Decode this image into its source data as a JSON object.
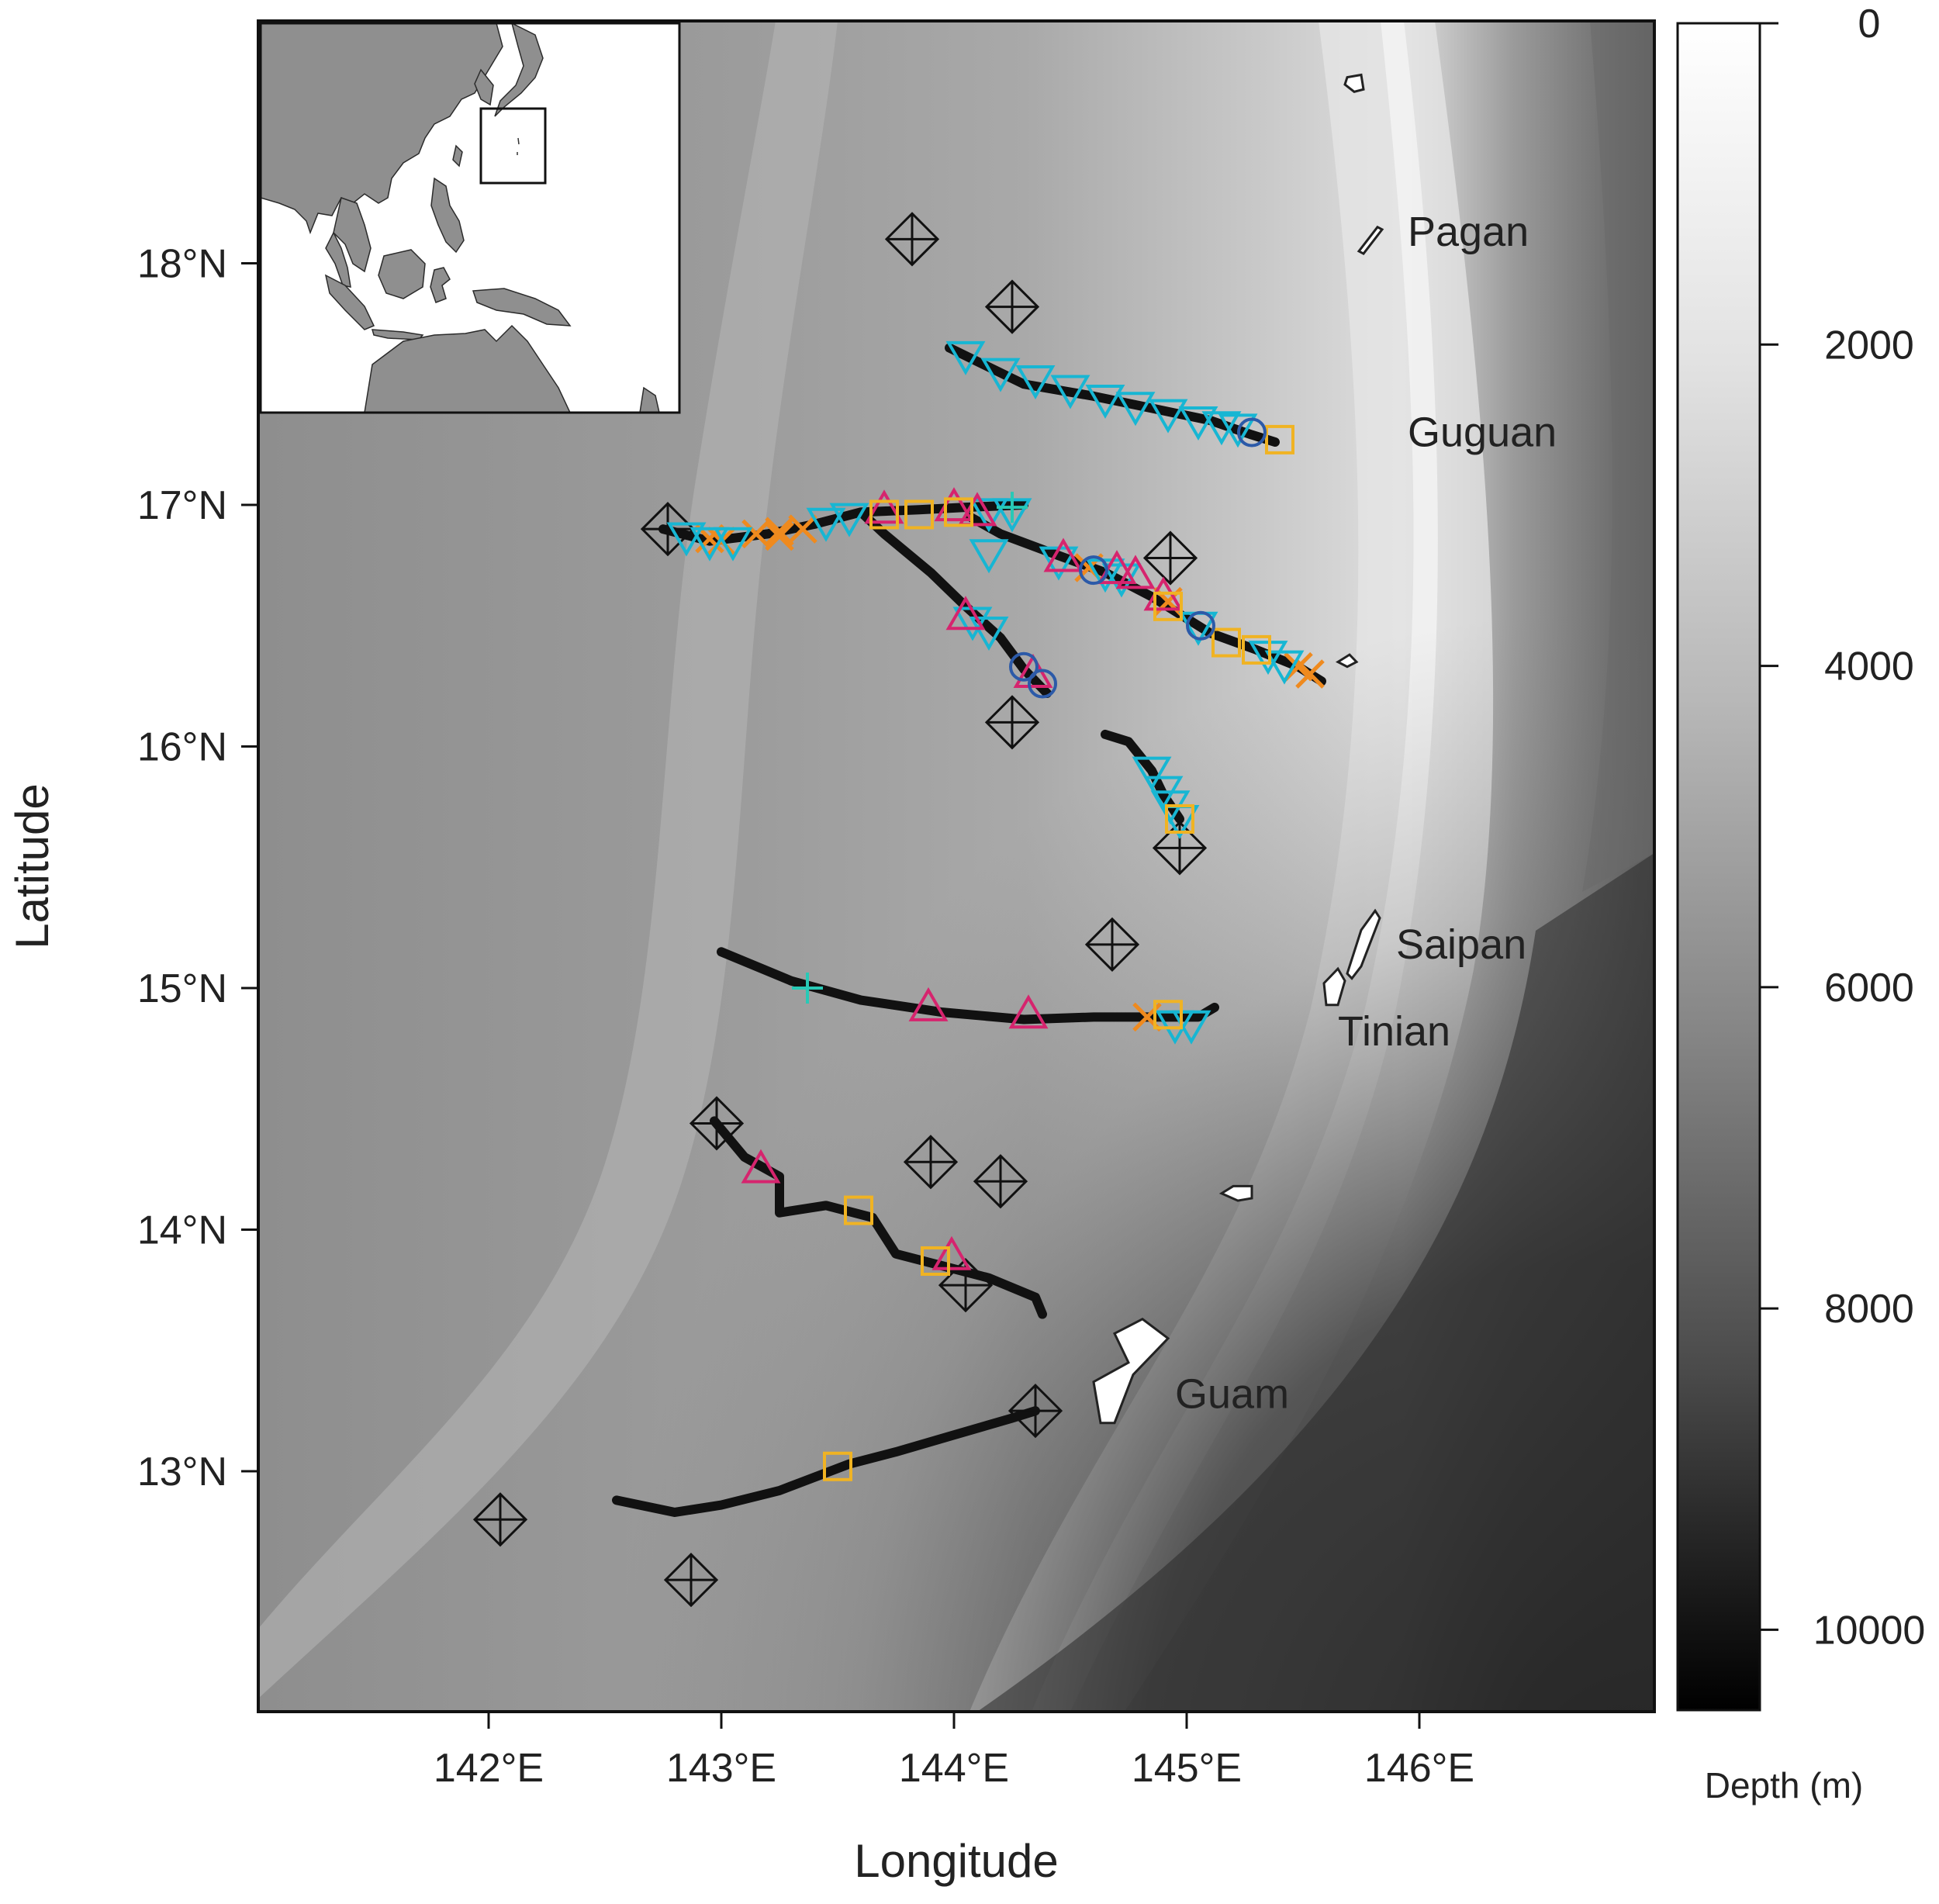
{
  "axes": {
    "x_title": "Longitude",
    "y_title": "Latitude",
    "x_range": [
      141.0,
      147.0
    ],
    "y_range": [
      12.0,
      19.0
    ],
    "x_ticks": [
      {
        "value": 142,
        "label": "142°E"
      },
      {
        "value": 143,
        "label": "143°E"
      },
      {
        "value": 144,
        "label": "144°E"
      },
      {
        "value": 145,
        "label": "145°E"
      },
      {
        "value": 146,
        "label": "146°E"
      }
    ],
    "y_ticks": [
      {
        "value": 13,
        "label": "13°N"
      },
      {
        "value": 14,
        "label": "14°N"
      },
      {
        "value": 15,
        "label": "15°N"
      },
      {
        "value": 16,
        "label": "16°N"
      },
      {
        "value": 17,
        "label": "17°N"
      },
      {
        "value": 18,
        "label": "18°N"
      }
    ]
  },
  "colorbar": {
    "title": "Depth (m)",
    "range": [
      0,
      10500
    ],
    "ticks": [
      {
        "value": 0,
        "label": "0"
      },
      {
        "value": 2000,
        "label": "2000"
      },
      {
        "value": 4000,
        "label": "4000"
      },
      {
        "value": 6000,
        "label": "6000"
      },
      {
        "value": 8000,
        "label": "8000"
      },
      {
        "value": 10000,
        "label": "10000"
      }
    ]
  },
  "places": [
    {
      "name": "Pagan",
      "lon": 145.95,
      "lat": 18.13
    },
    {
      "name": "Guguan",
      "lon": 145.95,
      "lat": 17.3
    },
    {
      "name": "Saipan",
      "lon": 145.9,
      "lat": 15.18
    },
    {
      "name": "Tinian",
      "lon": 145.65,
      "lat": 14.82
    },
    {
      "name": "Guam",
      "lon": 144.95,
      "lat": 13.32
    }
  ],
  "islands": [
    {
      "id": "north-islet",
      "lon": 145.72,
      "lat": 18.75,
      "shape": [
        [
          -0.03,
          0.02
        ],
        [
          0.03,
          0.03
        ],
        [
          0.04,
          -0.03
        ],
        [
          0.0,
          -0.04
        ],
        [
          -0.04,
          -0.01
        ]
      ]
    },
    {
      "id": "pagan",
      "lon": 145.78,
      "lat": 18.1,
      "shape": [
        [
          -0.04,
          -0.05
        ],
        [
          0.04,
          0.05
        ],
        [
          0.06,
          0.04
        ],
        [
          -0.02,
          -0.06
        ]
      ]
    },
    {
      "id": "mid-islet",
      "lon": 145.69,
      "lat": 16.35,
      "shape": [
        [
          -0.04,
          0.0
        ],
        [
          0.01,
          0.03
        ],
        [
          0.04,
          0.0
        ],
        [
          0.0,
          -0.02
        ]
      ]
    },
    {
      "id": "saipan",
      "lon": 145.75,
      "lat": 15.19,
      "shape": [
        [
          -0.06,
          -0.13
        ],
        [
          0.0,
          0.05
        ],
        [
          0.06,
          0.13
        ],
        [
          0.08,
          0.1
        ],
        [
          0.0,
          -0.1
        ],
        [
          -0.04,
          -0.15
        ]
      ]
    },
    {
      "id": "tinian",
      "lon": 145.63,
      "lat": 15.0,
      "shape": [
        [
          -0.03,
          -0.07
        ],
        [
          -0.04,
          0.02
        ],
        [
          0.02,
          0.08
        ],
        [
          0.05,
          0.03
        ],
        [
          0.02,
          -0.07
        ]
      ]
    },
    {
      "id": "rota",
      "lon": 145.22,
      "lat": 14.15,
      "shape": [
        [
          -0.07,
          0.0
        ],
        [
          -0.02,
          0.03
        ],
        [
          0.06,
          0.03
        ],
        [
          0.06,
          -0.02
        ],
        [
          0.0,
          -0.03
        ]
      ]
    },
    {
      "id": "guam",
      "lon": 144.75,
      "lat": 13.45,
      "shape": [
        [
          -0.12,
          -0.25
        ],
        [
          -0.15,
          -0.08
        ],
        [
          0.0,
          0.0
        ],
        [
          -0.06,
          0.12
        ],
        [
          0.06,
          0.18
        ],
        [
          0.17,
          0.1
        ],
        [
          0.02,
          -0.05
        ],
        [
          -0.06,
          -0.25
        ]
      ]
    }
  ],
  "tracks": [
    {
      "id": "track-1",
      "points": [
        [
          143.98,
          17.65
        ],
        [
          144.3,
          17.5
        ],
        [
          144.6,
          17.45
        ],
        [
          144.85,
          17.4
        ],
        [
          145.1,
          17.35
        ],
        [
          145.28,
          17.29
        ],
        [
          145.38,
          17.26
        ]
      ]
    },
    {
      "id": "track-2",
      "points": [
        [
          142.75,
          16.9
        ],
        [
          142.95,
          16.85
        ],
        [
          143.2,
          16.88
        ],
        [
          143.4,
          16.92
        ],
        [
          143.6,
          16.97
        ],
        [
          143.85,
          16.98
        ],
        [
          144.05,
          16.99
        ],
        [
          144.3,
          17.0
        ]
      ]
    },
    {
      "id": "track-3",
      "points": [
        [
          143.6,
          16.97
        ],
        [
          143.7,
          16.88
        ],
        [
          143.9,
          16.72
        ],
        [
          144.05,
          16.58
        ],
        [
          144.2,
          16.45
        ],
        [
          144.3,
          16.32
        ],
        [
          144.4,
          16.22
        ]
      ]
    },
    {
      "id": "track-4",
      "points": [
        [
          144.07,
          16.95
        ],
        [
          144.2,
          16.88
        ],
        [
          144.45,
          16.79
        ],
        [
          144.65,
          16.72
        ],
        [
          144.85,
          16.62
        ],
        [
          145.1,
          16.47
        ],
        [
          145.3,
          16.4
        ],
        [
          145.48,
          16.33
        ],
        [
          145.58,
          16.27
        ]
      ]
    },
    {
      "id": "track-5",
      "points": [
        [
          144.65,
          16.05
        ],
        [
          144.75,
          16.02
        ],
        [
          144.85,
          15.9
        ],
        [
          144.9,
          15.8
        ],
        [
          144.97,
          15.7
        ]
      ]
    },
    {
      "id": "track-6",
      "points": [
        [
          143.0,
          15.15
        ],
        [
          143.3,
          15.03
        ],
        [
          143.6,
          14.95
        ],
        [
          143.95,
          14.9
        ],
        [
          144.3,
          14.87
        ],
        [
          144.6,
          14.88
        ],
        [
          144.85,
          14.88
        ],
        [
          145.05,
          14.88
        ],
        [
          145.12,
          14.92
        ]
      ]
    },
    {
      "id": "track-7",
      "points": [
        [
          142.97,
          14.45
        ],
        [
          143.1,
          14.3
        ],
        [
          143.25,
          14.22
        ],
        [
          143.25,
          14.07
        ],
        [
          143.45,
          14.1
        ],
        [
          143.65,
          14.05
        ],
        [
          143.75,
          13.9
        ],
        [
          143.95,
          13.85
        ],
        [
          144.15,
          13.8
        ],
        [
          144.35,
          13.72
        ],
        [
          144.38,
          13.65
        ]
      ]
    },
    {
      "id": "track-8",
      "points": [
        [
          142.55,
          12.88
        ],
        [
          142.8,
          12.83
        ],
        [
          143.0,
          12.86
        ],
        [
          143.25,
          12.92
        ],
        [
          143.55,
          13.03
        ],
        [
          143.75,
          13.08
        ],
        [
          144.0,
          13.15
        ],
        [
          144.25,
          13.22
        ],
        [
          144.35,
          13.25
        ]
      ]
    }
  ],
  "diamonds": [
    [
      143.82,
      18.1
    ],
    [
      144.25,
      17.82
    ],
    [
      142.77,
      16.9
    ],
    [
      144.93,
      16.78
    ],
    [
      144.25,
      16.1
    ],
    [
      144.97,
      15.58
    ],
    [
      144.68,
      15.18
    ],
    [
      142.98,
      14.44
    ],
    [
      143.9,
      14.28
    ],
    [
      144.2,
      14.2
    ],
    [
      144.05,
      13.77
    ],
    [
      144.35,
      13.25
    ],
    [
      142.05,
      12.8
    ],
    [
      142.87,
      12.55
    ]
  ],
  "markers": {
    "down_triangle": {
      "color": "#17b6d3",
      "points": [
        [
          144.05,
          17.62
        ],
        [
          144.2,
          17.55
        ],
        [
          144.35,
          17.52
        ],
        [
          144.5,
          17.48
        ],
        [
          144.65,
          17.44
        ],
        [
          144.78,
          17.41
        ],
        [
          144.92,
          17.38
        ],
        [
          145.05,
          17.35
        ],
        [
          145.15,
          17.33
        ],
        [
          145.22,
          17.32
        ],
        [
          142.85,
          16.87
        ],
        [
          142.95,
          16.85
        ],
        [
          143.05,
          16.85
        ],
        [
          143.45,
          16.93
        ],
        [
          143.55,
          16.95
        ],
        [
          144.15,
          16.97
        ],
        [
          144.25,
          16.97
        ],
        [
          144.15,
          16.8
        ],
        [
          144.45,
          16.77
        ],
        [
          144.65,
          16.72
        ],
        [
          144.72,
          16.7
        ],
        [
          145.05,
          16.5
        ],
        [
          145.35,
          16.38
        ],
        [
          145.42,
          16.34
        ],
        [
          144.08,
          16.52
        ],
        [
          144.15,
          16.48
        ],
        [
          144.85,
          15.9
        ],
        [
          144.9,
          15.82
        ],
        [
          144.93,
          15.76
        ],
        [
          144.97,
          15.7
        ],
        [
          144.95,
          14.85
        ],
        [
          145.02,
          14.85
        ]
      ]
    },
    "up_triangle": {
      "color": "#d6246e",
      "points": [
        [
          143.7,
          16.98
        ],
        [
          144.0,
          16.99
        ],
        [
          144.1,
          16.97
        ],
        [
          144.47,
          16.78
        ],
        [
          144.7,
          16.73
        ],
        [
          144.78,
          16.71
        ],
        [
          144.9,
          16.62
        ],
        [
          144.05,
          16.54
        ],
        [
          144.34,
          16.3
        ],
        [
          143.89,
          14.92
        ],
        [
          144.32,
          14.89
        ],
        [
          143.17,
          14.25
        ],
        [
          143.99,
          13.89
        ]
      ]
    },
    "square": {
      "color": "#f0b323",
      "points": [
        [
          145.4,
          17.27
        ],
        [
          143.7,
          16.96
        ],
        [
          143.85,
          16.96
        ],
        [
          144.02,
          16.97
        ],
        [
          144.92,
          16.58
        ],
        [
          145.17,
          16.43
        ],
        [
          145.3,
          16.4
        ],
        [
          144.97,
          15.7
        ],
        [
          144.92,
          14.89
        ],
        [
          143.59,
          14.08
        ],
        [
          143.92,
          13.87
        ],
        [
          143.5,
          13.02
        ]
      ]
    },
    "x_mark": {
      "color": "#ef8a1e",
      "points": [
        [
          142.95,
          16.86
        ],
        [
          143.0,
          16.85
        ],
        [
          143.15,
          16.88
        ],
        [
          143.25,
          16.89
        ],
        [
          143.35,
          16.9
        ],
        [
          143.25,
          16.87
        ],
        [
          144.58,
          16.74
        ],
        [
          144.92,
          16.6
        ],
        [
          145.53,
          16.3
        ],
        [
          145.48,
          16.33
        ],
        [
          144.83,
          14.88
        ]
      ]
    },
    "circle": {
      "color": "#2c5aa8",
      "points": [
        [
          145.28,
          17.3
        ],
        [
          144.6,
          16.73
        ],
        [
          145.06,
          16.5
        ],
        [
          144.3,
          16.33
        ],
        [
          144.38,
          16.26
        ]
      ]
    },
    "plus": {
      "color": "#28c9b6",
      "points": [
        [
          143.37,
          15.0
        ],
        [
          144.25,
          16.99
        ]
      ]
    }
  },
  "inset": {
    "label": "",
    "box_extent": {
      "lon": [
        144.0,
        147.0
      ],
      "lat": [
        12.0,
        19.0
      ]
    }
  }
}
